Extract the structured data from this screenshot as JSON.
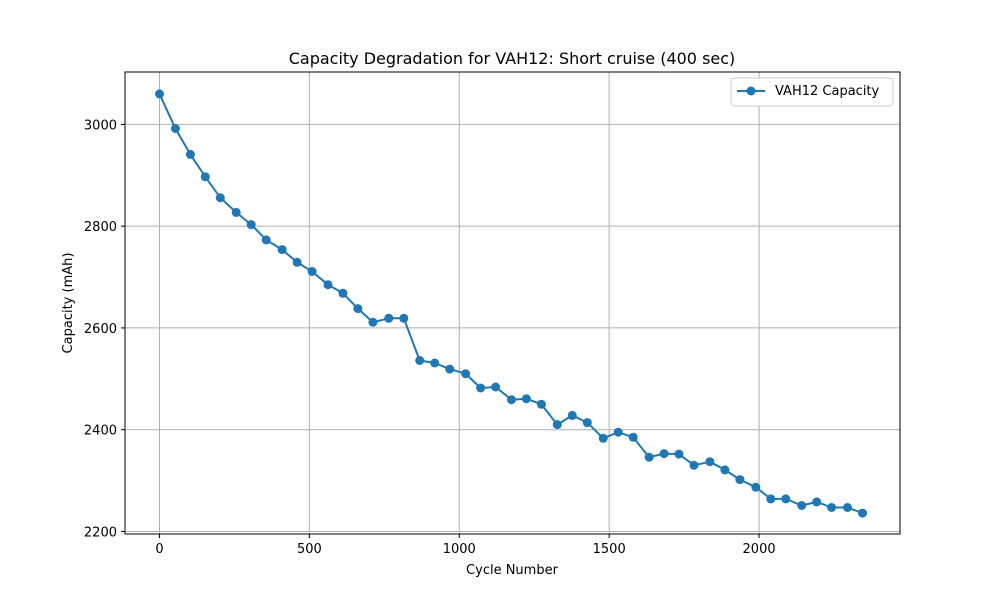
{
  "chart_data": {
    "type": "line",
    "title": "Capacity Degradation for VAH12: Short cruise (400 sec)",
    "xlabel": "Cycle Number",
    "ylabel": "Capacity (mAh)",
    "xlim": [
      -115,
      2470
    ],
    "ylim": [
      2195,
      3103
    ],
    "xticks": [
      0,
      500,
      1000,
      1500,
      2000
    ],
    "yticks": [
      2200,
      2400,
      2600,
      2800,
      3000
    ],
    "grid": true,
    "legend_position": "top-right",
    "series": [
      {
        "name": "VAH12 Capacity",
        "color": "#1f77b4",
        "marker": "circle",
        "x": [
          0,
          53,
          103,
          153,
          203,
          256,
          306,
          356,
          409,
          459,
          509,
          562,
          612,
          662,
          712,
          765,
          815,
          868,
          918,
          968,
          1021,
          1071,
          1121,
          1174,
          1224,
          1274,
          1327,
          1377,
          1427,
          1480,
          1530,
          1580,
          1633,
          1683,
          1733,
          1783,
          1836,
          1886,
          1936,
          1989,
          2039,
          2089,
          2142,
          2192,
          2242,
          2295,
          2345
        ],
        "y": [
          3060,
          2992,
          2941,
          2897,
          2856,
          2827,
          2803,
          2773,
          2754,
          2729,
          2711,
          2685,
          2668,
          2638,
          2611,
          2619,
          2619,
          2536,
          2531,
          2519,
          2510,
          2482,
          2484,
          2459,
          2461,
          2450,
          2410,
          2428,
          2414,
          2383,
          2395,
          2385,
          2346,
          2353,
          2352,
          2330,
          2337,
          2321,
          2302,
          2287,
          2264,
          2264,
          2251,
          2258,
          2247,
          2247,
          2236
        ]
      }
    ]
  }
}
